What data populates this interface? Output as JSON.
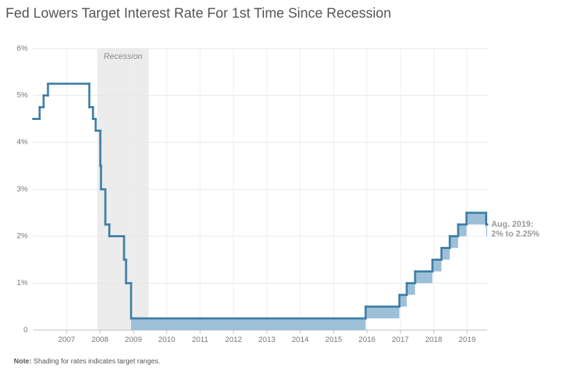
{
  "chart_data": {
    "type": "step",
    "title": "Fed Lowers Target Interest Rate For 1st Time Since Recession",
    "x": [
      2006.0,
      2006.19,
      2006.31,
      2006.44,
      2007.68,
      2007.79,
      2007.87,
      2008.01,
      2008.03,
      2008.16,
      2008.28,
      2008.72,
      2008.78,
      2008.93,
      2015.96,
      2016.97,
      2017.19,
      2017.44,
      2017.96,
      2018.23,
      2018.48,
      2018.73,
      2018.98,
      2019.57
    ],
    "series": [
      {
        "color": "#3f7ea6",
        "values": [
          4.5,
          4.75,
          5.0,
          5.25,
          4.75,
          4.5,
          4.25,
          3.5,
          3.0,
          2.25,
          2.0,
          1.5,
          1.0,
          0.25,
          0.5,
          0.75,
          1.0,
          1.25,
          1.5,
          1.75,
          2.0,
          2.25,
          2.5,
          2.25
        ]
      },
      {
        "color": "#9dc0d8",
        "values": [
          null,
          null,
          null,
          null,
          null,
          null,
          null,
          null,
          null,
          null,
          null,
          null,
          null,
          0,
          0.25,
          0.5,
          0.75,
          1.0,
          1.25,
          1.5,
          1.75,
          2.0,
          2.25,
          2.0
        ]
      }
    ],
    "recession": {
      "label": "Recession",
      "start": 2007.92,
      "end": 2009.46
    },
    "annotation": [
      "Aug. 2019:",
      "2% to 2.25%"
    ],
    "note": {
      "label": "Note:",
      "text": "Shading for rates indicates target ranges."
    },
    "xlim": [
      2006.0,
      2019.6
    ],
    "xticks": [
      2007,
      2008,
      2009,
      2010,
      2011,
      2012,
      2013,
      2014,
      2015,
      2016,
      2017,
      2018,
      2019
    ],
    "ylim": [
      0,
      6
    ],
    "yticks": [
      0,
      {
        "value": 1,
        "label": "1%"
      },
      {
        "value": 2,
        "label": "2%"
      },
      {
        "value": 3,
        "label": "3%"
      },
      {
        "value": 4,
        "label": "4%"
      },
      {
        "value": 5,
        "label": "5%"
      },
      {
        "value": 6,
        "label": "6%"
      }
    ],
    "grid": true
  }
}
